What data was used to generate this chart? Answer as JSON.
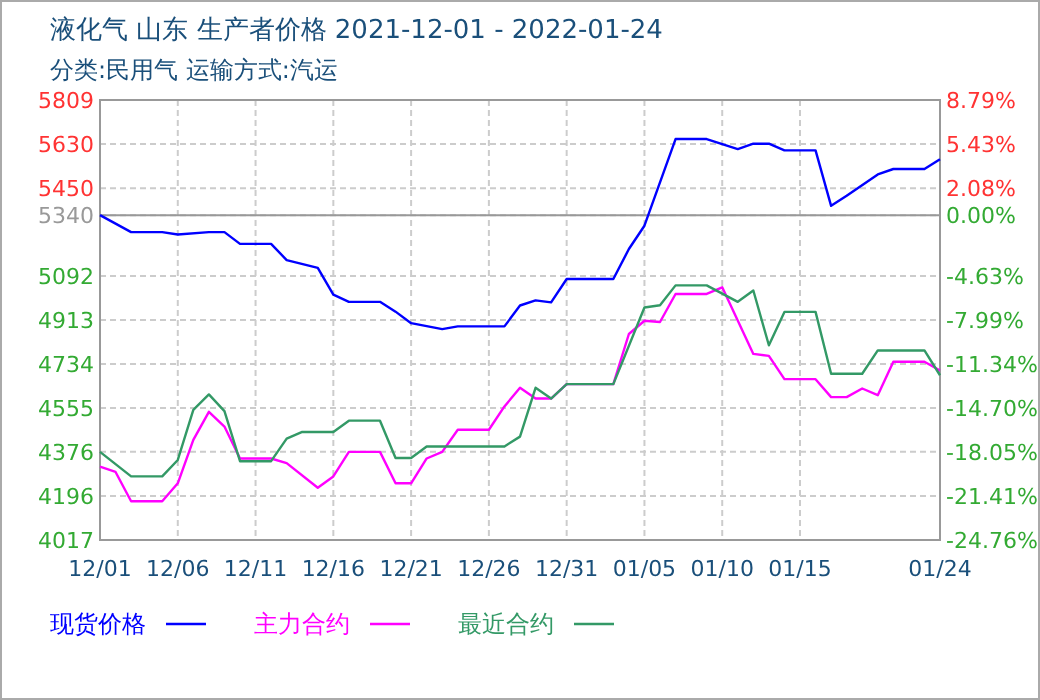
{
  "chart_data": {
    "type": "line",
    "title": "液化气 山东 生产者价格 2021-12-01 - 2022-01-24",
    "subtitle": "分类:民用气 运输方式:汽运",
    "xlim": [
      "2021-12-01",
      "2022-01-24"
    ],
    "xticks": [
      {
        "value": "2021-12-01",
        "label": "12/01"
      },
      {
        "value": "2021-12-06",
        "label": "12/06"
      },
      {
        "value": "2021-12-11",
        "label": "12/11"
      },
      {
        "value": "2021-12-16",
        "label": "12/16"
      },
      {
        "value": "2021-12-21",
        "label": "12/21"
      },
      {
        "value": "2021-12-26",
        "label": "12/26"
      },
      {
        "value": "2021-12-31",
        "label": "12/31"
      },
      {
        "value": "2022-01-05",
        "label": "01/05"
      },
      {
        "value": "2022-01-10",
        "label": "01/10"
      },
      {
        "value": "2022-01-15",
        "label": "01/15"
      },
      {
        "value": "2022-01-24",
        "label": "01/24"
      }
    ],
    "ylim": [
      4017,
      5809
    ],
    "yticks": [
      4017,
      4196,
      4376,
      4555,
      4734,
      4913,
      5092,
      5340,
      5450,
      5630,
      5809
    ],
    "y2lim": [
      -24.76,
      8.79
    ],
    "y2ticks": [
      {
        "value": -24.76,
        "label": "-24.76%"
      },
      {
        "value": -21.41,
        "label": "-21.41%"
      },
      {
        "value": -18.05,
        "label": "-18.05%"
      },
      {
        "value": -14.7,
        "label": "-14.70%"
      },
      {
        "value": -11.34,
        "label": "-11.34%"
      },
      {
        "value": -7.99,
        "label": "-7.99%"
      },
      {
        "value": -4.63,
        "label": "-4.63%"
      },
      {
        "value": 0,
        "label": "0.00%"
      },
      {
        "value": 2.08,
        "label": "2.08%"
      },
      {
        "value": 5.43,
        "label": "5.43%"
      },
      {
        "value": 8.79,
        "label": "8.79%"
      }
    ],
    "ref_lines": [
      {
        "axis": "y",
        "value": 5340,
        "color": "#999999",
        "line_style": "solid"
      }
    ],
    "grid": true,
    "legend": "bottom",
    "line_style": "solid",
    "series": [
      {
        "name": "现货价格",
        "color": "#0000ff",
        "x": [
          "2021-12-01",
          "2021-12-03",
          "2021-12-05",
          "2021-12-06",
          "2021-12-08",
          "2021-12-09",
          "2021-12-10",
          "2021-12-12",
          "2021-12-13",
          "2021-12-15",
          "2021-12-16",
          "2021-12-17",
          "2021-12-19",
          "2021-12-20",
          "2021-12-21",
          "2021-12-23",
          "2021-12-24",
          "2021-12-27",
          "2021-12-28",
          "2021-12-29",
          "2021-12-30",
          "2021-12-31",
          "2022-01-03",
          "2022-01-04",
          "2022-01-05",
          "2022-01-07",
          "2022-01-09",
          "2022-01-11",
          "2022-01-12",
          "2022-01-13",
          "2022-01-14",
          "2022-01-16",
          "2022-01-17",
          "2022-01-18",
          "2022-01-20",
          "2022-01-21",
          "2022-01-23",
          "2022-01-24"
        ],
        "values": [
          5340,
          5271,
          5271,
          5261,
          5271,
          5271,
          5223,
          5223,
          5157,
          5125,
          5016,
          4987,
          4987,
          4947,
          4900,
          4876,
          4887,
          4887,
          4972,
          4993,
          4985,
          5080,
          5080,
          5202,
          5297,
          5650,
          5650,
          5609,
          5631,
          5631,
          5604,
          5604,
          5378,
          5419,
          5506,
          5528,
          5528,
          5568
        ]
      },
      {
        "name": "主力合约",
        "color": "#ff00ff",
        "x": [
          "2021-12-01",
          "2021-12-02",
          "2021-12-03",
          "2021-12-05",
          "2021-12-06",
          "2021-12-07",
          "2021-12-08",
          "2021-12-09",
          "2021-12-10",
          "2021-12-12",
          "2021-12-13",
          "2021-12-15",
          "2021-12-16",
          "2021-12-17",
          "2021-12-19",
          "2021-12-20",
          "2021-12-21",
          "2021-12-22",
          "2021-12-23",
          "2021-12-24",
          "2021-12-26",
          "2021-12-27",
          "2021-12-28",
          "2021-12-29",
          "2021-12-30",
          "2021-12-31",
          "2022-01-03",
          "2022-01-04",
          "2022-01-05",
          "2022-01-06",
          "2022-01-07",
          "2022-01-09",
          "2022-01-10",
          "2022-01-12",
          "2022-01-13",
          "2022-01-14",
          "2022-01-16",
          "2022-01-17",
          "2022-01-18",
          "2022-01-19",
          "2022-01-20",
          "2022-01-21",
          "2022-01-23",
          "2022-01-24"
        ],
        "values": [
          4316,
          4294,
          4175,
          4175,
          4248,
          4425,
          4539,
          4479,
          4349,
          4349,
          4330,
          4230,
          4276,
          4376,
          4376,
          4248,
          4248,
          4349,
          4376,
          4466,
          4466,
          4561,
          4637,
          4593,
          4593,
          4652,
          4652,
          4856,
          4910,
          4905,
          5019,
          5019,
          5046,
          4775,
          4767,
          4672,
          4672,
          4599,
          4599,
          4634,
          4607,
          4743,
          4743,
          4707
        ]
      },
      {
        "name": "最近合约",
        "color": "#339966",
        "x": [
          "2021-12-01",
          "2021-12-03",
          "2021-12-05",
          "2021-12-06",
          "2021-12-07",
          "2021-12-08",
          "2021-12-09",
          "2021-12-10",
          "2021-12-12",
          "2021-12-13",
          "2021-12-14",
          "2021-12-16",
          "2021-12-17",
          "2021-12-19",
          "2021-12-20",
          "2021-12-21",
          "2021-12-22",
          "2021-12-27",
          "2021-12-28",
          "2021-12-29",
          "2021-12-30",
          "2021-12-31",
          "2022-01-03",
          "2022-01-05",
          "2022-01-06",
          "2022-01-07",
          "2022-01-09",
          "2022-01-11",
          "2022-01-12",
          "2022-01-13",
          "2022-01-14",
          "2022-01-16",
          "2022-01-17",
          "2022-01-19",
          "2022-01-20",
          "2022-01-23",
          "2022-01-24"
        ],
        "values": [
          4376,
          4276,
          4276,
          4343,
          4547,
          4610,
          4542,
          4338,
          4338,
          4430,
          4457,
          4457,
          4503,
          4503,
          4351,
          4351,
          4398,
          4398,
          4438,
          4637,
          4593,
          4652,
          4652,
          4964,
          4973,
          5054,
          5054,
          4987,
          5033,
          4810,
          4946,
          4946,
          4694,
          4694,
          4789,
          4789,
          4688
        ]
      }
    ]
  }
}
